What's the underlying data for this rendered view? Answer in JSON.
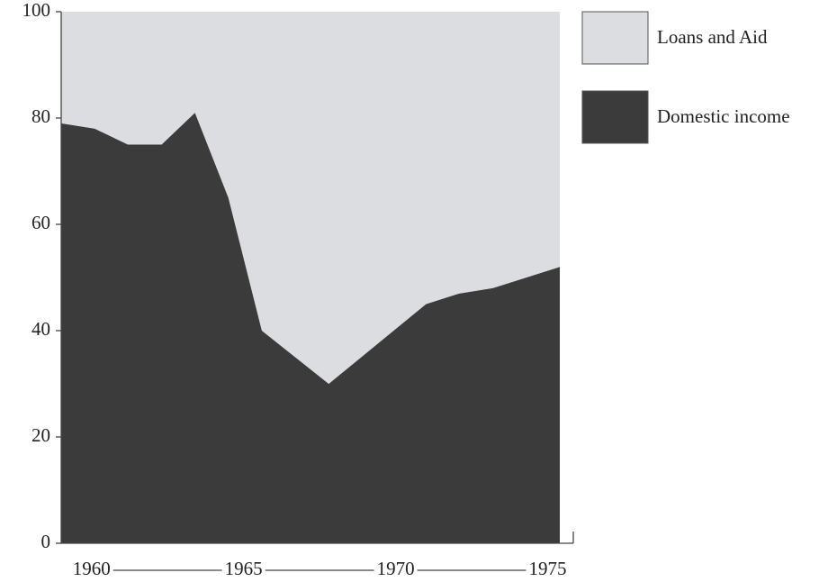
{
  "chart_data": {
    "type": "stacked_area",
    "x": [
      1959,
      1960.1,
      1961.2,
      1962.3,
      1963.4,
      1964.5,
      1965.6,
      1967.8,
      1971.0,
      1972.1,
      1973.2,
      1975.4
    ],
    "series": [
      {
        "name": "Loans and Aid",
        "color": "#dcdde0",
        "values": [
          21,
          22,
          25,
          25,
          19,
          35,
          60,
          70,
          55,
          53,
          52,
          48
        ]
      },
      {
        "name": "Domestic income",
        "color": "#3b3b3b",
        "values": [
          79,
          78,
          75,
          75,
          81,
          65,
          40,
          30,
          45,
          47,
          48,
          52
        ]
      }
    ],
    "xlim": [
      1959,
      1975.4
    ],
    "xticks": [
      1960,
      1965,
      1970,
      1975
    ],
    "ylim": [
      0,
      100
    ],
    "yticks": [
      0,
      20,
      40,
      60,
      80,
      100
    ],
    "legend": "right"
  }
}
